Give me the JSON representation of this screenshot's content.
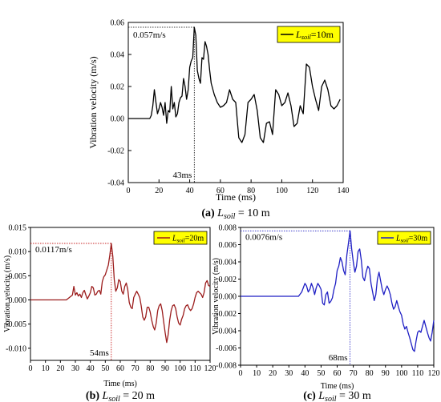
{
  "chart_data": [
    {
      "type": "line",
      "panel": "a",
      "caption_letter": "(a)",
      "caption_symbol": "L",
      "caption_sub": "soil",
      "caption_rest": " = 10 m",
      "xlabel": "Time (ms)",
      "ylabel": "Vibration velocity (m/s)",
      "xlim": [
        0,
        140
      ],
      "ylim": [
        -0.04,
        0.06
      ],
      "xticks": [
        0,
        20,
        40,
        60,
        80,
        100,
        120,
        140
      ],
      "yticks": [
        -0.04,
        -0.02,
        0.0,
        0.02,
        0.04,
        0.06
      ],
      "ytick_labels": [
        "-0.04",
        "-0.02",
        "0.00",
        "0.02",
        "0.04",
        "0.06"
      ],
      "legend_symbol": "L",
      "legend_sub": "soil",
      "legend_rest": "=10m",
      "legend_position": "top-right",
      "peak_label": "0.057m/s",
      "peak_time_label": "43ms",
      "peak": {
        "x": 43,
        "y": 0.057
      },
      "series": [
        {
          "color": "#000000",
          "x": [
            0,
            12,
            14,
            15,
            16,
            17,
            18,
            19,
            20,
            21,
            22,
            23,
            24,
            25,
            26,
            27,
            28,
            29,
            30,
            31,
            32,
            33,
            34,
            35,
            36,
            37,
            38,
            39,
            40,
            41,
            42,
            43,
            44,
            45,
            46,
            47,
            48,
            49,
            50,
            51,
            52,
            53,
            54,
            56,
            58,
            60,
            62,
            64,
            66,
            68,
            70,
            72,
            74,
            76,
            78,
            80,
            82,
            84,
            86,
            88,
            90,
            92,
            94,
            96,
            98,
            100,
            102,
            104,
            106,
            108,
            110,
            112,
            114,
            116,
            118,
            120,
            122,
            124,
            126,
            128,
            130,
            132,
            134,
            136,
            138
          ],
          "y": [
            0,
            0,
            0,
            0.002,
            0.008,
            0.018,
            0.01,
            0.003,
            0.006,
            0.01,
            0.007,
            0.002,
            0.01,
            -0.003,
            0.005,
            0.004,
            0.02,
            0.006,
            0.01,
            0.001,
            0.003,
            0.01,
            0.013,
            0.014,
            0.025,
            0.02,
            0.012,
            0.018,
            0.032,
            0.036,
            0.038,
            0.057,
            0.052,
            0.03,
            0.025,
            0.022,
            0.038,
            0.037,
            0.048,
            0.045,
            0.04,
            0.03,
            0.022,
            0.015,
            0.01,
            0.007,
            0.008,
            0.01,
            0.018,
            0.012,
            0.01,
            -0.012,
            -0.015,
            -0.01,
            0.01,
            0.012,
            0.015,
            0.005,
            -0.012,
            -0.015,
            -0.003,
            -0.002,
            -0.01,
            0.018,
            0.015,
            0.008,
            0.01,
            0.016,
            0.008,
            -0.005,
            -0.003,
            0.008,
            0.003,
            0.034,
            0.032,
            0.02,
            0.012,
            0.005,
            0.02,
            0.024,
            0.018,
            0.008,
            0.006,
            0.008,
            0.012
          ]
        }
      ]
    },
    {
      "type": "line",
      "panel": "b",
      "caption_letter": "(b)",
      "caption_symbol": "L",
      "caption_sub": "soil",
      "caption_rest": " = 20 m",
      "xlabel": "Time (ms)",
      "ylabel": "Vibration velocity (m/s)",
      "xlim": [
        0,
        120
      ],
      "ylim": [
        -0.0125,
        0.015
      ],
      "xticks": [
        0,
        10,
        20,
        30,
        40,
        50,
        60,
        70,
        80,
        90,
        100,
        110,
        120
      ],
      "yticks": [
        -0.01,
        -0.005,
        0.0,
        0.005,
        0.01,
        0.015
      ],
      "ytick_labels": [
        "-0.010",
        "-0.005",
        "0.000",
        "0.005",
        "0.010",
        "0.015"
      ],
      "legend_symbol": "L",
      "legend_sub": "soil",
      "legend_rest": "=20m",
      "legend_position": "top-right",
      "peak_label": "0.0117m/s",
      "peak_time_label": "54ms",
      "peak": {
        "x": 54,
        "y": 0.0117
      },
      "series": [
        {
          "color": "#9b1c1c",
          "x": [
            0,
            24,
            26,
            28,
            29,
            30,
            31,
            32,
            33,
            34,
            35,
            36,
            37,
            38,
            39,
            40,
            41,
            42,
            43,
            44,
            45,
            46,
            47,
            48,
            49,
            50,
            51,
            52,
            53,
            54,
            55,
            56,
            57,
            58,
            59,
            60,
            61,
            62,
            63,
            64,
            65,
            66,
            67,
            68,
            69,
            70,
            71,
            72,
            73,
            74,
            75,
            76,
            77,
            78,
            79,
            80,
            81,
            82,
            83,
            84,
            85,
            86,
            87,
            88,
            89,
            90,
            91,
            92,
            93,
            94,
            95,
            96,
            97,
            98,
            99,
            100,
            101,
            102,
            103,
            104,
            105,
            106,
            107,
            108,
            109,
            110,
            111,
            112,
            113,
            114,
            115,
            116,
            117,
            118,
            119,
            120
          ],
          "y": [
            0,
            0,
            0.0005,
            0.001,
            0.0028,
            0.001,
            0.0015,
            0.0008,
            0.0012,
            0.0005,
            0.0015,
            0.002,
            0.001,
            0.0002,
            0.0008,
            0.0015,
            0.0028,
            0.0025,
            0.001,
            0.0012,
            0.0018,
            0.002,
            0.0012,
            0.0038,
            0.0048,
            0.0052,
            0.0062,
            0.0072,
            0.0092,
            0.0117,
            0.009,
            0.0042,
            0.0018,
            0.0025,
            0.0042,
            0.0038,
            0.0018,
            0.0012,
            0.0028,
            0.0035,
            0.0022,
            -0.0005,
            -0.0015,
            -0.0018,
            0.0005,
            0.0012,
            0.0018,
            0.0012,
            0.0005,
            -0.0012,
            -0.0035,
            -0.0042,
            -0.0035,
            -0.0015,
            -0.0015,
            -0.0025,
            -0.0042,
            -0.0055,
            -0.0062,
            -0.0048,
            -0.0022,
            -0.0012,
            -0.0008,
            -0.0022,
            -0.0045,
            -0.0068,
            -0.0088,
            -0.0072,
            -0.0042,
            -0.0022,
            -0.0012,
            -0.001,
            -0.0018,
            -0.0035,
            -0.0048,
            -0.0052,
            -0.004,
            -0.0032,
            -0.0018,
            -0.0012,
            -0.001,
            -0.0018,
            -0.0022,
            -0.0018,
            -0.0008,
            0.0005,
            0.0015,
            0.0018,
            0.0015,
            0.0012,
            0.0005,
            0.0015,
            0.0035,
            0.004,
            0.003,
            0.0028
          ]
        }
      ]
    },
    {
      "type": "line",
      "panel": "c",
      "caption_letter": "(c)",
      "caption_symbol": "L",
      "caption_sub": "soil",
      "caption_rest": " = 30 m",
      "xlabel": "Time (ms)",
      "ylabel": "Vibration velocity (m/s)",
      "xlim": [
        0,
        120
      ],
      "ylim": [
        -0.008,
        0.008
      ],
      "xticks": [
        0,
        10,
        20,
        30,
        40,
        50,
        60,
        70,
        80,
        90,
        100,
        110,
        120
      ],
      "yticks": [
        -0.008,
        -0.006,
        -0.004,
        -0.002,
        0.0,
        0.002,
        0.004,
        0.006,
        0.008
      ],
      "ytick_labels": [
        "-0.008",
        "-0.006",
        "-0.004",
        "-0.002",
        "0.000",
        "0.002",
        "0.004",
        "0.006",
        "0.008"
      ],
      "legend_symbol": "L",
      "legend_sub": "soil",
      "legend_rest": "=30m",
      "legend_position": "top-right",
      "peak_label": "0.0076m/s",
      "peak_time_label": "68ms",
      "peak": {
        "x": 68,
        "y": 0.0076
      },
      "series": [
        {
          "color": "#1f1fc4",
          "x": [
            0,
            36,
            38,
            40,
            41,
            42,
            43,
            44,
            45,
            46,
            47,
            48,
            49,
            50,
            51,
            52,
            53,
            54,
            55,
            56,
            57,
            58,
            59,
            60,
            61,
            62,
            63,
            64,
            65,
            66,
            67,
            68,
            69,
            70,
            71,
            72,
            73,
            74,
            75,
            76,
            77,
            78,
            79,
            80,
            81,
            82,
            83,
            84,
            85,
            86,
            87,
            88,
            89,
            90,
            91,
            92,
            93,
            94,
            95,
            96,
            97,
            98,
            99,
            100,
            101,
            102,
            103,
            104,
            105,
            106,
            107,
            108,
            109,
            110,
            111,
            112,
            113,
            114,
            115,
            116,
            117,
            118,
            119,
            120
          ],
          "y": [
            0,
            0,
            0.0005,
            0.0015,
            0.0012,
            0.0005,
            0.0008,
            0.0015,
            0.001,
            0.0002,
            0.001,
            0.0015,
            0.0012,
            0.0008,
            -0.0008,
            -0.001,
            0.0002,
            0.0005,
            -0.0008,
            -0.0006,
            -0.0002,
            0.0008,
            0.0015,
            0.003,
            0.0035,
            0.0045,
            0.004,
            0.003,
            0.0025,
            0.0048,
            0.0062,
            0.0076,
            0.0055,
            0.004,
            0.0028,
            0.0035,
            0.0052,
            0.0055,
            0.0042,
            0.0022,
            0.0018,
            0.0028,
            0.0035,
            0.0032,
            0.0015,
            0.0005,
            -0.0005,
            0.0002,
            0.002,
            0.0028,
            0.0018,
            0.0008,
            0.0002,
            0.0008,
            0.0012,
            0.0008,
            0.0002,
            -0.0008,
            -0.0015,
            -0.0012,
            -0.0005,
            -0.0012,
            -0.0018,
            -0.0022,
            -0.0032,
            -0.0038,
            -0.0035,
            -0.0042,
            -0.0048,
            -0.0055,
            -0.0062,
            -0.0064,
            -0.0052,
            -0.0042,
            -0.004,
            -0.0042,
            -0.0035,
            -0.0028,
            -0.0035,
            -0.0042,
            -0.0048,
            -0.0052,
            -0.0042,
            -0.0028
          ]
        }
      ]
    }
  ]
}
